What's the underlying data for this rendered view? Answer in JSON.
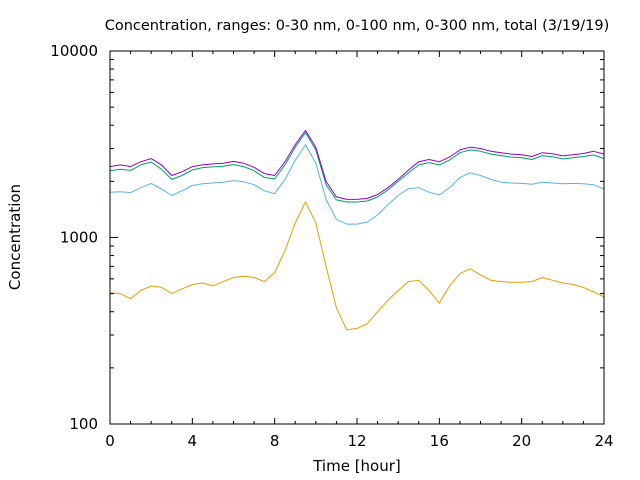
{
  "chart_data": {
    "type": "line",
    "title": "Concentration, ranges: 0-30 nm, 0-100 nm, 0-300 nm, total (3/19/19)",
    "xlabel": "Time [hour]",
    "ylabel": "Concentration",
    "xlim": [
      0,
      24
    ],
    "ylim": [
      100,
      10000
    ],
    "yscale": "log",
    "grid": false,
    "legend": "none",
    "x_ticks": [
      0,
      4,
      8,
      12,
      16,
      20,
      24
    ],
    "y_ticks": [
      100,
      1000,
      10000
    ],
    "series": [
      {
        "color": "#e69f00",
        "x": [
          0,
          0.5,
          1,
          1.5,
          2,
          2.5,
          3,
          3.5,
          4,
          4.5,
          5,
          5.5,
          6,
          6.5,
          7,
          7.5,
          8,
          8.5,
          9,
          9.5,
          10,
          10.5,
          11,
          11.5,
          12,
          12.5,
          13,
          13.5,
          14,
          14.5,
          15,
          15.5,
          16,
          16.5,
          17,
          17.5,
          18,
          18.5,
          19,
          19.5,
          20,
          20.5,
          21,
          21.5,
          22,
          22.5,
          23,
          23.5,
          24
        ],
        "y": [
          505,
          500,
          470,
          520,
          550,
          540,
          500,
          530,
          560,
          570,
          550,
          580,
          610,
          620,
          610,
          580,
          650,
          850,
          1200,
          1550,
          1200,
          700,
          420,
          320,
          325,
          345,
          400,
          460,
          520,
          580,
          590,
          520,
          445,
          550,
          640,
          680,
          630,
          590,
          580,
          575,
          575,
          580,
          610,
          590,
          570,
          560,
          540,
          510,
          480
        ]
      },
      {
        "color": "#56b4e9",
        "x": [
          0,
          0.5,
          1,
          1.5,
          2,
          2.5,
          3,
          3.5,
          4,
          4.5,
          5,
          5.5,
          6,
          6.5,
          7,
          7.5,
          8,
          8.5,
          9,
          9.5,
          10,
          10.5,
          11,
          11.5,
          12,
          12.5,
          13,
          13.5,
          14,
          14.5,
          15,
          15.5,
          16,
          16.5,
          17,
          17.5,
          18,
          18.5,
          19,
          19.5,
          20,
          20.5,
          21,
          21.5,
          22,
          22.5,
          23,
          23.5,
          24
        ],
        "y": [
          1750,
          1760,
          1740,
          1850,
          1950,
          1820,
          1680,
          1780,
          1900,
          1940,
          1960,
          1980,
          2020,
          1990,
          1920,
          1780,
          1720,
          2050,
          2600,
          3150,
          2500,
          1600,
          1250,
          1180,
          1180,
          1210,
          1320,
          1500,
          1680,
          1830,
          1850,
          1750,
          1690,
          1850,
          2100,
          2220,
          2150,
          2050,
          1980,
          1960,
          1950,
          1930,
          1980,
          1960,
          1940,
          1950,
          1940,
          1920,
          1820
        ]
      },
      {
        "color": "#009e73",
        "x": [
          0,
          0.5,
          1,
          1.5,
          2,
          2.5,
          3,
          3.5,
          4,
          4.5,
          5,
          5.5,
          6,
          6.5,
          7,
          7.5,
          8,
          8.5,
          9,
          9.5,
          10,
          10.5,
          11,
          11.5,
          12,
          12.5,
          13,
          13.5,
          14,
          14.5,
          15,
          15.5,
          16,
          16.5,
          17,
          17.5,
          18,
          18.5,
          19,
          19.5,
          20,
          20.5,
          21,
          21.5,
          22,
          22.5,
          23,
          23.5,
          24
        ],
        "y": [
          2280,
          2320,
          2290,
          2450,
          2540,
          2320,
          2050,
          2150,
          2300,
          2370,
          2390,
          2410,
          2460,
          2400,
          2280,
          2100,
          2060,
          2450,
          3050,
          3650,
          2950,
          1920,
          1590,
          1550,
          1550,
          1570,
          1650,
          1800,
          2000,
          2220,
          2450,
          2520,
          2450,
          2600,
          2850,
          2950,
          2900,
          2800,
          2750,
          2700,
          2680,
          2620,
          2750,
          2710,
          2640,
          2680,
          2720,
          2770,
          2650
        ]
      },
      {
        "color": "#9400d3",
        "x": [
          0,
          0.5,
          1,
          1.5,
          2,
          2.5,
          3,
          3.5,
          4,
          4.5,
          5,
          5.5,
          6,
          6.5,
          7,
          7.5,
          8,
          8.5,
          9,
          9.5,
          10,
          10.5,
          11,
          11.5,
          12,
          12.5,
          13,
          13.5,
          14,
          14.5,
          15,
          15.5,
          16,
          16.5,
          17,
          17.5,
          18,
          18.5,
          19,
          19.5,
          20,
          20.5,
          21,
          21.5,
          22,
          22.5,
          23,
          23.5,
          24
        ],
        "y": [
          2400,
          2450,
          2400,
          2550,
          2650,
          2450,
          2150,
          2250,
          2400,
          2450,
          2480,
          2500,
          2560,
          2500,
          2380,
          2200,
          2150,
          2550,
          3150,
          3750,
          3050,
          2000,
          1650,
          1600,
          1600,
          1620,
          1700,
          1850,
          2050,
          2300,
          2550,
          2620,
          2550,
          2700,
          2950,
          3050,
          3000,
          2900,
          2850,
          2800,
          2780,
          2720,
          2850,
          2810,
          2740,
          2780,
          2820,
          2900,
          2800
        ]
      }
    ]
  }
}
